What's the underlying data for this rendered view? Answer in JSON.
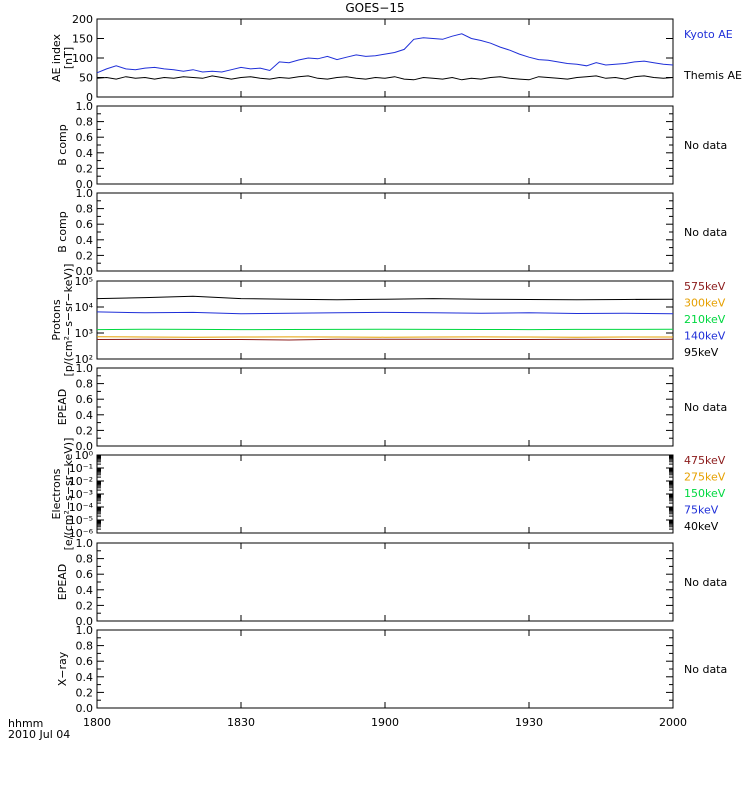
{
  "title": "GOES−15",
  "time_label": "hhmm",
  "date_label": "2010 Jul 04",
  "colors": {
    "kyoto": "#1f2fd8",
    "themis": "#000000",
    "red": "#8b1a1a",
    "orange": "#e6a000",
    "green": "#00d840",
    "blue": "#1f2fd8",
    "black": "#000000"
  },
  "chart_data": [
    {
      "id": "ae",
      "type": "line",
      "ylabel": [
        "AE index",
        "[nT]"
      ],
      "ylim": [
        0,
        200
      ],
      "yticks": [
        0,
        50,
        100,
        150,
        200
      ],
      "ytick_labels": [
        "0",
        "50",
        "100",
        "150",
        "200"
      ],
      "series": [
        {
          "name": "Kyoto AE",
          "color": "#1f2fd8",
          "x": [
            1800,
            1802,
            1804,
            1806,
            1808,
            1810,
            1812,
            1814,
            1816,
            1818,
            1820,
            1822,
            1824,
            1826,
            1828,
            1830,
            1832,
            1834,
            1836,
            1838,
            1840,
            1842,
            1844,
            1846,
            1848,
            1850,
            1852,
            1854,
            1856,
            1858,
            1900,
            1902,
            1904,
            1906,
            1908,
            1910,
            1912,
            1914,
            1916,
            1918,
            1920,
            1922,
            1924,
            1926,
            1928,
            1930,
            1932,
            1934,
            1936,
            1938,
            1940,
            1942,
            1944,
            1946,
            1948,
            1950,
            1952,
            1954,
            1956,
            1958,
            2000
          ],
          "y": [
            62,
            72,
            80,
            72,
            70,
            74,
            76,
            72,
            70,
            66,
            70,
            64,
            66,
            64,
            70,
            76,
            72,
            74,
            68,
            90,
            88,
            95,
            100,
            98,
            104,
            96,
            102,
            108,
            104,
            106,
            110,
            114,
            122,
            148,
            152,
            150,
            148,
            156,
            162,
            150,
            145,
            138,
            128,
            120,
            110,
            102,
            96,
            94,
            90,
            86,
            84,
            80,
            88,
            82,
            84,
            86,
            90,
            92,
            88,
            84,
            82
          ]
        },
        {
          "name": "Themis AE",
          "color": "#000000",
          "x": [
            1800,
            1802,
            1804,
            1806,
            1808,
            1810,
            1812,
            1814,
            1816,
            1818,
            1820,
            1822,
            1824,
            1826,
            1828,
            1830,
            1832,
            1834,
            1836,
            1838,
            1840,
            1842,
            1844,
            1846,
            1848,
            1850,
            1852,
            1854,
            1856,
            1858,
            1900,
            1902,
            1904,
            1906,
            1908,
            1910,
            1912,
            1914,
            1916,
            1918,
            1920,
            1922,
            1924,
            1926,
            1928,
            1930,
            1932,
            1934,
            1936,
            1938,
            1940,
            1942,
            1944,
            1946,
            1948,
            1950,
            1952,
            1954,
            1956,
            1958,
            2000
          ],
          "y": [
            48,
            50,
            46,
            52,
            48,
            50,
            46,
            50,
            48,
            52,
            50,
            48,
            54,
            50,
            46,
            50,
            52,
            48,
            46,
            50,
            48,
            52,
            54,
            48,
            46,
            50,
            52,
            48,
            46,
            50,
            48,
            52,
            46,
            44,
            50,
            48,
            46,
            50,
            44,
            48,
            46,
            50,
            52,
            48,
            46,
            44,
            52,
            50,
            48,
            46,
            50,
            52,
            54,
            48,
            50,
            46,
            52,
            54,
            50,
            48,
            50
          ]
        }
      ],
      "right_labels": [
        {
          "text": "Kyoto AE",
          "color": "#1f2fd8"
        },
        {
          "text": "Themis AE",
          "color": "#000000"
        }
      ]
    },
    {
      "id": "b1",
      "type": "line",
      "ylabel": [
        "B comp"
      ],
      "ylim": [
        0,
        1
      ],
      "yticks": [
        0,
        0.2,
        0.4,
        0.6,
        0.8,
        1.0
      ],
      "ytick_labels": [
        "0.0",
        "0.2",
        "0.4",
        "0.6",
        "0.8",
        "1.0"
      ],
      "series": [],
      "right_labels": [
        {
          "text": "No data",
          "color": "#000000"
        }
      ]
    },
    {
      "id": "b2",
      "type": "line",
      "ylabel": [
        "B comp"
      ],
      "ylim": [
        0,
        1
      ],
      "yticks": [
        0,
        0.2,
        0.4,
        0.6,
        0.8,
        1.0
      ],
      "ytick_labels": [
        "0.0",
        "0.2",
        "0.4",
        "0.6",
        "0.8",
        "1.0"
      ],
      "series": [],
      "right_labels": [
        {
          "text": "No data",
          "color": "#000000"
        }
      ]
    },
    {
      "id": "protons",
      "type": "line",
      "log": true,
      "ylabel": [
        "Protons",
        "[p/(cm²−s−sr−keV)]"
      ],
      "ylim": [
        100,
        100000
      ],
      "yticks": [
        100,
        1000,
        10000,
        100000
      ],
      "ytick_labels": [
        "10²",
        "10³",
        "10⁴",
        "10⁵"
      ],
      "series": [
        {
          "name": "95keV",
          "color": "#000000",
          "x": [
            1800,
            1810,
            1820,
            1830,
            1840,
            1850,
            1900,
            1910,
            1920,
            1930,
            1940,
            1950,
            2000
          ],
          "y": [
            21000,
            23000,
            26000,
            21000,
            20000,
            19000,
            20000,
            21000,
            20000,
            19500,
            19000,
            19500,
            20000
          ]
        },
        {
          "name": "140keV",
          "color": "#1f2fd8",
          "x": [
            1800,
            1810,
            1820,
            1830,
            1840,
            1850,
            1900,
            1910,
            1920,
            1930,
            1940,
            1950,
            2000
          ],
          "y": [
            6500,
            6000,
            6200,
            5500,
            5800,
            6000,
            6200,
            6000,
            5800,
            6000,
            5600,
            5800,
            5500
          ]
        },
        {
          "name": "210keV",
          "color": "#00d840",
          "x": [
            1800,
            1810,
            1820,
            1830,
            1840,
            1850,
            1900,
            1910,
            1920,
            1930,
            1940,
            1950,
            2000
          ],
          "y": [
            1350,
            1400,
            1380,
            1350,
            1360,
            1370,
            1400,
            1380,
            1360,
            1350,
            1370,
            1380,
            1400
          ]
        },
        {
          "name": "300keV",
          "color": "#e6a000",
          "x": [
            1800,
            1810,
            1820,
            1830,
            1840,
            1850,
            1900,
            1910,
            1920,
            1930,
            1940,
            1950,
            2000
          ],
          "y": [
            720,
            700,
            690,
            700,
            710,
            700,
            690,
            700,
            710,
            700,
            690,
            700,
            700
          ]
        },
        {
          "name": "575keV",
          "color": "#8b1a1a",
          "x": [
            1800,
            1810,
            1820,
            1830,
            1840,
            1850,
            1900,
            1910,
            1920,
            1930,
            1940,
            1950,
            2000
          ],
          "y": [
            560,
            570,
            560,
            560,
            540,
            570,
            580,
            570,
            560,
            560,
            570,
            560,
            570
          ]
        }
      ],
      "right_labels": [
        {
          "text": "575keV",
          "color": "#8b1a1a"
        },
        {
          "text": "300keV",
          "color": "#e6a000"
        },
        {
          "text": "210keV",
          "color": "#00d840"
        },
        {
          "text": "140keV",
          "color": "#1f2fd8"
        },
        {
          "text": "95keV",
          "color": "#000000"
        }
      ]
    },
    {
      "id": "epead1",
      "type": "line",
      "ylabel": [
        "EPEAD"
      ],
      "ylim": [
        0,
        1
      ],
      "yticks": [
        0,
        0.2,
        0.4,
        0.6,
        0.8,
        1.0
      ],
      "ytick_labels": [
        "0.0",
        "0.2",
        "0.4",
        "0.6",
        "0.8",
        "1.0"
      ],
      "series": [],
      "right_labels": [
        {
          "text": "No data",
          "color": "#000000"
        }
      ]
    },
    {
      "id": "electrons",
      "type": "line",
      "log": true,
      "ylabel": [
        "Electrons",
        "[e/(cm²−s−sr−keV)]"
      ],
      "ylim": [
        1e-06,
        1
      ],
      "yticks": [
        1,
        0.1,
        0.01,
        0.001,
        0.0001,
        1e-05,
        1e-06
      ],
      "ytick_labels": [
        "10⁰",
        "10⁻¹",
        "10⁻²",
        "10⁻³",
        "10⁻⁴",
        "10⁻⁵",
        "10⁻⁶"
      ],
      "series": [],
      "right_labels": [
        {
          "text": "475keV",
          "color": "#8b1a1a"
        },
        {
          "text": "275keV",
          "color": "#e6a000"
        },
        {
          "text": "150keV",
          "color": "#00d840"
        },
        {
          "text": "75keV",
          "color": "#1f2fd8"
        },
        {
          "text": "40keV",
          "color": "#000000"
        }
      ]
    },
    {
      "id": "epead2",
      "type": "line",
      "ylabel": [
        "EPEAD"
      ],
      "ylim": [
        0,
        1
      ],
      "yticks": [
        0,
        0.2,
        0.4,
        0.6,
        0.8,
        1.0
      ],
      "ytick_labels": [
        "0.0",
        "0.2",
        "0.4",
        "0.6",
        "0.8",
        "1.0"
      ],
      "series": [],
      "right_labels": [
        {
          "text": "No data",
          "color": "#000000"
        }
      ]
    },
    {
      "id": "xray",
      "type": "line",
      "ylabel": [
        "X−ray"
      ],
      "ylim": [
        0,
        1
      ],
      "yticks": [
        0,
        0.2,
        0.4,
        0.6,
        0.8,
        1.0
      ],
      "ytick_labels": [
        "0.0",
        "0.2",
        "0.4",
        "0.6",
        "0.8",
        "1.0"
      ],
      "series": [],
      "right_labels": [
        {
          "text": "No data",
          "color": "#000000"
        }
      ]
    }
  ],
  "x_axis": {
    "xlim": [
      1800,
      2000
    ],
    "ticks": [
      1800,
      1830,
      1900,
      1930,
      2000
    ],
    "tick_labels": [
      "1800",
      "1830",
      "1900",
      "1930",
      "2000"
    ]
  }
}
